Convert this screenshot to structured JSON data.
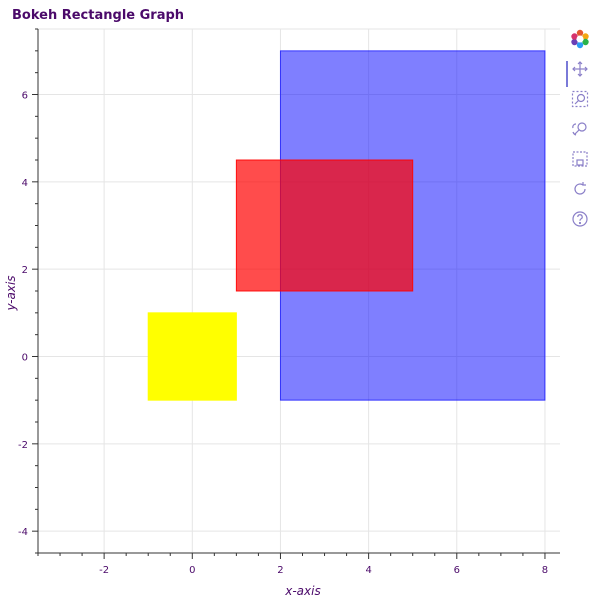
{
  "chart_data": {
    "type": "rect",
    "title": "Bokeh Rectangle Graph",
    "xlabel": "x-axis",
    "ylabel": "y-axis",
    "xlim": [
      -3.5,
      8.5
    ],
    "ylim": [
      -4.5,
      7.5
    ],
    "xticks": [
      -2,
      0,
      2,
      4,
      6,
      8
    ],
    "yticks": [
      -4,
      -2,
      0,
      2,
      4,
      6
    ],
    "grid": true,
    "rects": [
      {
        "x": 0,
        "y": 0,
        "width": 2,
        "height": 2,
        "color": "#ffff00",
        "alpha": 1.0
      },
      {
        "x": 5,
        "y": 3,
        "width": 6,
        "height": 8,
        "color": "#0000ff",
        "alpha": 0.5
      },
      {
        "x": 3,
        "y": 3,
        "width": 4,
        "height": 3,
        "color": "#ff0000",
        "alpha": 0.7
      }
    ],
    "colors": {
      "axis_text": "#4b0a6a",
      "grid": "#e5e5e5",
      "axis_line": "#333333"
    }
  },
  "toolbar": {
    "tools": [
      {
        "name": "bokeh-logo-icon"
      },
      {
        "name": "pan-tool-icon"
      },
      {
        "name": "box-zoom-tool-icon"
      },
      {
        "name": "wheel-zoom-tool-icon"
      },
      {
        "name": "save-tool-icon"
      },
      {
        "name": "reset-tool-icon"
      },
      {
        "name": "help-tool-icon"
      }
    ]
  }
}
